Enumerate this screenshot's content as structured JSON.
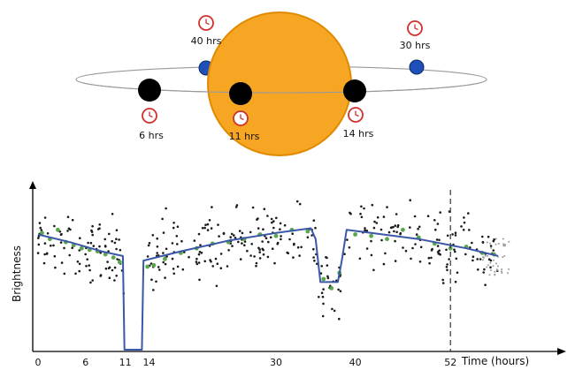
{
  "diagram": {
    "orbit_markers": [
      {
        "label": "40 hrs",
        "icon": "clock-icon"
      },
      {
        "label": "30 hrs",
        "icon": "clock-icon"
      },
      {
        "label": "6 hrs",
        "icon": "clock-icon"
      },
      {
        "label": "11 hrs",
        "icon": "clock-icon"
      },
      {
        "label": "14 hrs",
        "icon": "clock-icon"
      }
    ],
    "colors": {
      "star_fill": "#f6a623",
      "star_edge": "#e08a00",
      "planet_dark": "#000000",
      "planet_blue": "#1f4fb8",
      "clock": "#d0312d",
      "fit_line": "#3b57a8",
      "binned": "#5aa64a",
      "raw": "#1a1a1a"
    }
  },
  "chart_data": {
    "type": "scatter",
    "xlabel": "Time (hours)",
    "ylabel": "Brightness",
    "xlim": [
      0,
      64
    ],
    "ylim": [
      0,
      1
    ],
    "x_ticks": [
      "0",
      "6",
      "11",
      "14",
      "30",
      "40",
      "52"
    ],
    "x_tick_values": [
      0,
      6,
      11,
      14,
      30,
      40,
      52
    ],
    "marked_time": 52,
    "series": [
      {
        "kind": "model-fit",
        "points": [
          [
            0,
            0.75
          ],
          [
            4,
            0.7
          ],
          [
            8,
            0.64
          ],
          [
            10.7,
            0.61
          ],
          [
            10.9,
            0.0
          ],
          [
            13.1,
            0.0
          ],
          [
            13.3,
            0.58
          ],
          [
            18,
            0.64
          ],
          [
            24,
            0.71
          ],
          [
            30,
            0.76
          ],
          [
            34.4,
            0.79
          ],
          [
            35,
            0.72
          ],
          [
            35.6,
            0.44
          ],
          [
            37.8,
            0.44
          ],
          [
            38.3,
            0.58
          ],
          [
            38.9,
            0.78
          ],
          [
            42,
            0.76
          ],
          [
            48,
            0.72
          ],
          [
            54,
            0.66
          ],
          [
            58,
            0.61
          ]
        ]
      },
      {
        "kind": "binned",
        "points": [
          [
            0.5,
            0.76
          ],
          [
            1.5,
            0.72
          ],
          [
            2.5,
            0.78
          ],
          [
            3.5,
            0.7
          ],
          [
            4.5,
            0.68
          ],
          [
            5.5,
            0.66
          ],
          [
            6.5,
            0.65
          ],
          [
            7.5,
            0.64
          ],
          [
            8.5,
            0.62
          ],
          [
            9.5,
            0.6
          ],
          [
            10.3,
            0.57
          ],
          [
            13.8,
            0.54
          ],
          [
            14.6,
            0.55
          ],
          [
            16,
            0.59
          ],
          [
            18,
            0.63
          ],
          [
            20,
            0.66
          ],
          [
            22,
            0.69
          ],
          [
            24,
            0.7
          ],
          [
            26,
            0.72
          ],
          [
            28,
            0.75
          ],
          [
            30,
            0.74
          ],
          [
            32,
            0.78
          ],
          [
            34,
            0.77
          ],
          [
            36,
            0.46
          ],
          [
            37,
            0.4
          ],
          [
            38,
            0.5
          ],
          [
            40,
            0.75
          ],
          [
            42,
            0.74
          ],
          [
            44,
            0.72
          ],
          [
            46,
            0.78
          ],
          [
            48,
            0.73
          ],
          [
            50,
            0.69
          ],
          [
            52,
            0.66
          ],
          [
            54,
            0.67
          ],
          [
            56,
            0.63
          ],
          [
            57.5,
            0.62
          ]
        ]
      }
    ]
  }
}
